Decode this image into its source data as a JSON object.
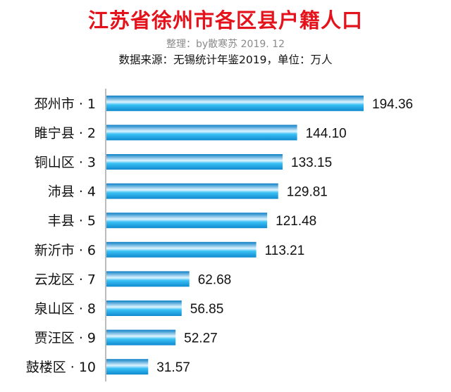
{
  "header": {
    "title": "江苏省徐州市各区县户籍人口",
    "credit": "整理：by散寒苏  2019. 12",
    "source": "数据来源：无锡统计年鉴2019，单位：万人"
  },
  "chart_data": {
    "type": "bar",
    "orientation": "horizontal",
    "title": "江苏省徐州市各区县户籍人口",
    "xlabel": "",
    "ylabel": "",
    "unit": "万人",
    "categories": [
      "邳州市 · 1",
      "睢宁县 · 2",
      "铜山区 · 3",
      "沛县 · 4",
      "丰县 · 5",
      "新沂市 · 6",
      "云龙区 · 7",
      "泉山区 · 8",
      "贾汪区 · 9",
      "鼓楼区 · 10"
    ],
    "values": [
      194.36,
      144.1,
      133.15,
      129.81,
      121.48,
      113.21,
      62.68,
      56.85,
      52.27,
      31.57
    ],
    "value_labels": [
      "194.36",
      "144.10",
      "133.15",
      "129.81",
      "121.48",
      "113.21",
      "62.68",
      "56.85",
      "52.27",
      "31.57"
    ],
    "xlim": [
      0,
      194.36
    ],
    "grid": false,
    "legend": false,
    "colors": {
      "bar_light": "#dff4ff",
      "bar_mid": "#39c1f4",
      "bar_dark": "#0c7fc6",
      "axis": "#7a7a7a"
    }
  }
}
